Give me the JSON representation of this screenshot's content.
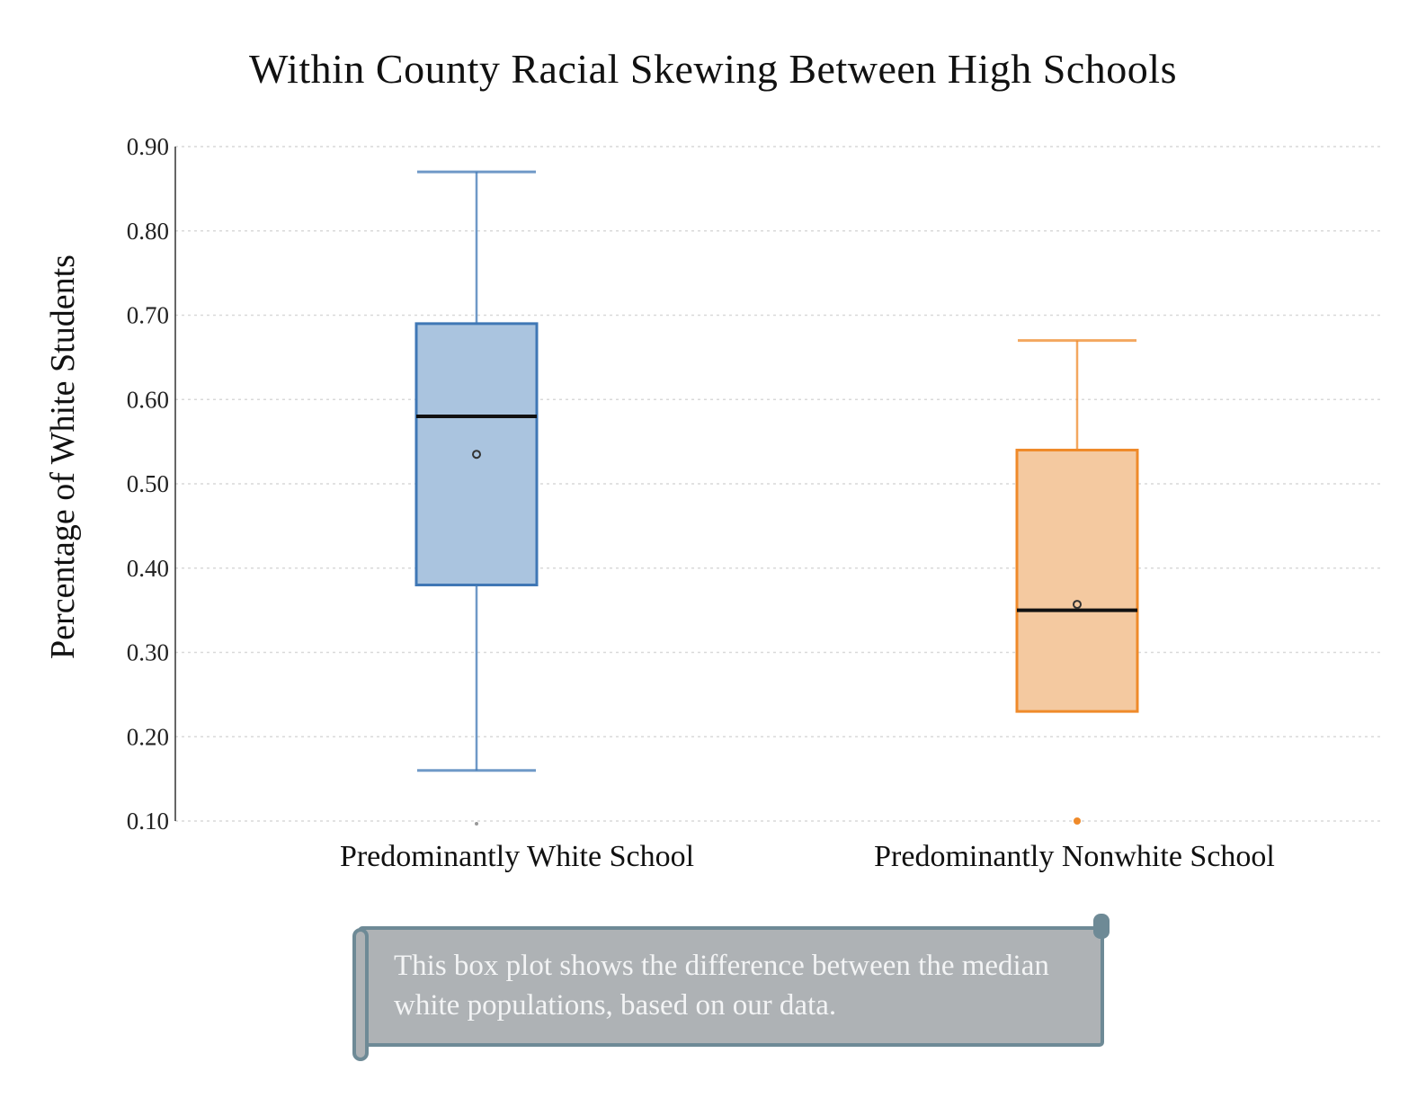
{
  "chart_data": {
    "type": "box",
    "title": "Within County Racial Skewing Between High Schools",
    "ylabel": "Percentage of White Students",
    "xlabel": "",
    "ylim": [
      0.1,
      0.9
    ],
    "yticks": [
      "0.10",
      "0.20",
      "0.30",
      "0.40",
      "0.50",
      "0.60",
      "0.70",
      "0.80",
      "0.90"
    ],
    "grid": true,
    "categories": [
      "Predominantly White School",
      "Predominantly Nonwhite School"
    ],
    "boxes": [
      {
        "category": "Predominantly White School",
        "min": 0.16,
        "q1": 0.38,
        "median": 0.58,
        "q3": 0.69,
        "max": 0.87,
        "mean": 0.535,
        "color": "#3f77b5",
        "fill": "#aac4df"
      },
      {
        "category": "Predominantly Nonwhite School",
        "min": 0.23,
        "q1": 0.23,
        "median": 0.35,
        "q3": 0.54,
        "max": 0.67,
        "mean": 0.357,
        "outliers": [
          0.1
        ],
        "color": "#ef8a2a",
        "fill": "#f4c9a0"
      }
    ]
  },
  "note": {
    "text": "This box plot shows the difference between the median white populations, based on our data."
  }
}
